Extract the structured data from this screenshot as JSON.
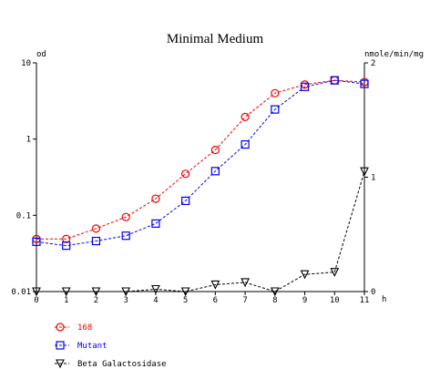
{
  "chart_data": {
    "type": "line",
    "title": "Minimal Medium",
    "xlabel": "h",
    "ylabel_left": "od",
    "ylabel_right": "nmole/min/mg",
    "x": [
      0,
      1,
      2,
      3,
      4,
      5,
      6,
      7,
      8,
      9,
      10,
      11
    ],
    "x_ticks": [
      "0",
      "1",
      "2",
      "3",
      "4",
      "5",
      "6",
      "7",
      "8",
      "9",
      "10",
      "11"
    ],
    "xlim": [
      0,
      11
    ],
    "y_left_scale": "log",
    "y_left_lim": [
      0.01,
      10
    ],
    "y_left_ticks": [
      "0.01",
      "0.1",
      "1",
      "10"
    ],
    "y_right_lim": [
      0,
      2
    ],
    "y_right_ticks": [
      "0",
      "1",
      "2"
    ],
    "series": [
      {
        "name": "168",
        "axis": "left",
        "marker": "circle",
        "color": "#ee0000",
        "line_style": "dotted",
        "values": [
          0.049,
          0.049,
          0.067,
          0.095,
          0.165,
          0.35,
          0.72,
          1.95,
          4.0,
          5.2,
          5.9,
          5.6
        ]
      },
      {
        "name": "Mutant",
        "axis": "left",
        "marker": "square",
        "color": "#0000ee",
        "line_style": "dotted",
        "values": [
          0.045,
          0.04,
          0.046,
          0.054,
          0.078,
          0.155,
          0.38,
          0.85,
          2.45,
          4.85,
          5.9,
          5.3
        ]
      },
      {
        "name": "Beta Galactosidase",
        "axis": "right",
        "marker": "triangle-down",
        "color": "#000000",
        "line_style": "dotted",
        "values": [
          0.0,
          0.0,
          0.0,
          0.0,
          0.02,
          0.0,
          0.06,
          0.08,
          0.0,
          0.15,
          0.17,
          1.05
        ]
      }
    ]
  }
}
